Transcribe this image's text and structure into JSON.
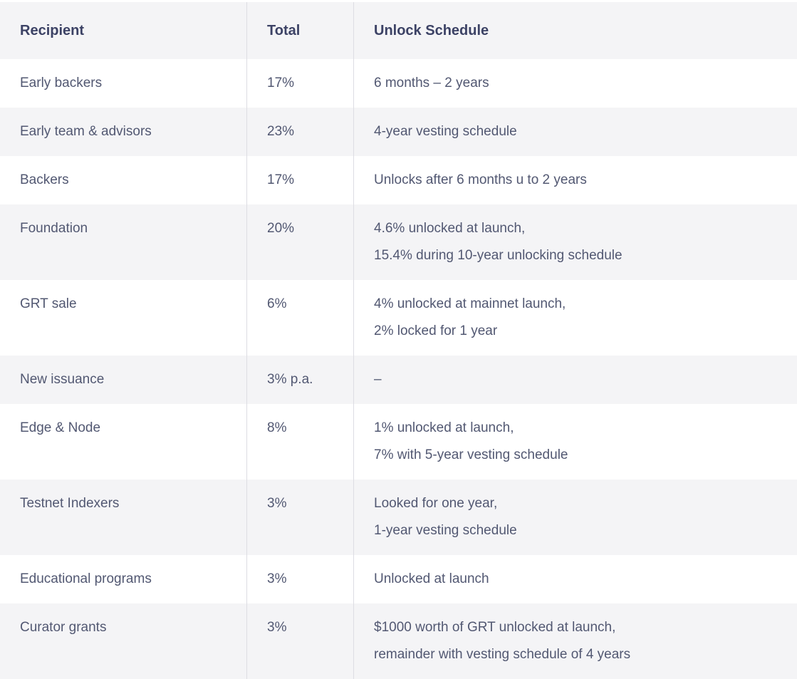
{
  "colors": {
    "background": "#ffffff",
    "row_stripe": "#f4f4f6",
    "header_text": "#3c4265",
    "body_text": "#525872",
    "column_divider": "#dddde3"
  },
  "table": {
    "headers": [
      "Recipient",
      "Total",
      "Unlock Schedule"
    ],
    "rows": [
      {
        "recipient": "Early backers",
        "total": "17%",
        "schedule_lines": [
          "6 months – 2 years"
        ]
      },
      {
        "recipient": "Early team & advisors",
        "total": "23%",
        "schedule_lines": [
          "4-year vesting schedule"
        ]
      },
      {
        "recipient": "Backers",
        "total": "17%",
        "schedule_lines": [
          "Unlocks after 6 months u to 2 years"
        ]
      },
      {
        "recipient": "Foundation",
        "total": "20%",
        "schedule_lines": [
          "4.6% unlocked at launch,",
          "15.4% during 10-year unlocking schedule"
        ]
      },
      {
        "recipient": "GRT sale",
        "total": "6%",
        "schedule_lines": [
          "4% unlocked at mainnet launch,",
          "2% locked for 1 year"
        ]
      },
      {
        "recipient": "New issuance",
        "total": "3% p.a.",
        "schedule_lines": [
          "–"
        ]
      },
      {
        "recipient": "Edge & Node",
        "total": "8%",
        "schedule_lines": [
          "1% unlocked at launch,",
          "7% with 5-year vesting schedule"
        ]
      },
      {
        "recipient": "Testnet Indexers",
        "total": "3%",
        "schedule_lines": [
          "Looked for one year,",
          "1-year vesting schedule"
        ]
      },
      {
        "recipient": "Educational programs",
        "total": "3%",
        "schedule_lines": [
          "Unlocked at launch"
        ]
      },
      {
        "recipient": "Curator grants",
        "total": "3%",
        "schedule_lines": [
          "$1000 worth of GRT unlocked at launch,",
          "remainder with vesting schedule of 4 years"
        ]
      }
    ]
  },
  "chart_data": {
    "type": "table",
    "columns": [
      "Recipient",
      "Total",
      "Unlock Schedule"
    ],
    "rows": [
      [
        "Early backers",
        "17%",
        "6 months – 2 years"
      ],
      [
        "Early team & advisors",
        "23%",
        "4-year vesting schedule"
      ],
      [
        "Backers",
        "17%",
        "Unlocks after 6 months u to 2 years"
      ],
      [
        "Foundation",
        "20%",
        "4.6% unlocked at launch, 15.4% during 10-year unlocking schedule"
      ],
      [
        "GRT sale",
        "6%",
        "4% unlocked at mainnet launch, 2% locked for 1 year"
      ],
      [
        "New issuance",
        "3% p.a.",
        "–"
      ],
      [
        "Edge & Node",
        "8%",
        "1% unlocked at launch, 7% with 5-year vesting schedule"
      ],
      [
        "Testnet Indexers",
        "3%",
        "Looked for one year, 1-year vesting schedule"
      ],
      [
        "Educational programs",
        "3%",
        "Unlocked at launch"
      ],
      [
        "Curator grants",
        "3%",
        "$1000 worth of GRT unlocked at launch, remainder with vesting schedule of 4 years"
      ]
    ]
  }
}
